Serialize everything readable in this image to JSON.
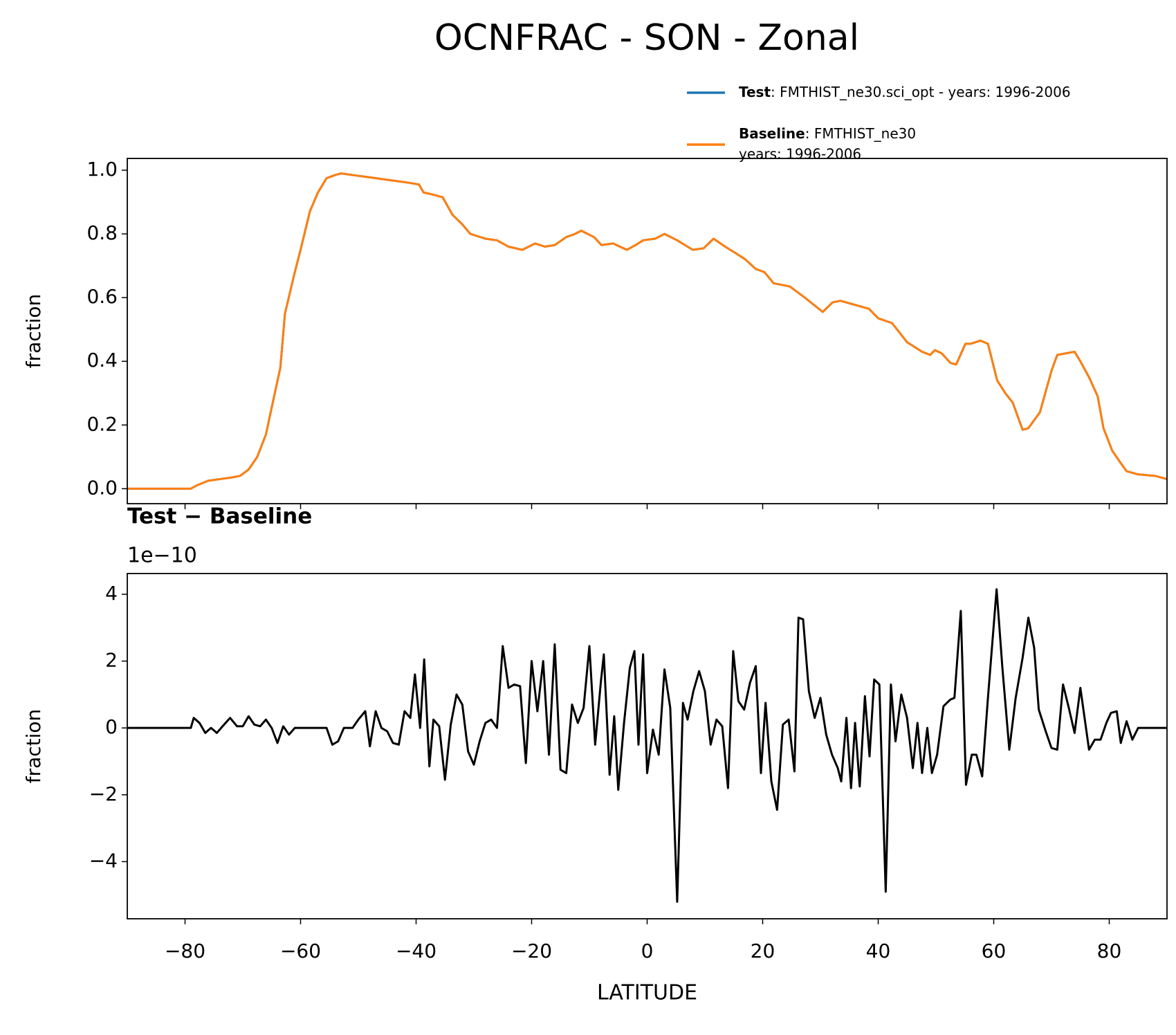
{
  "title": "OCNFRAC - SON - Zonal",
  "chart_data": [
    {
      "type": "line",
      "ylabel": "fraction",
      "xlim": [
        -90,
        90
      ],
      "ylim": [
        -0.047,
        1.037
      ],
      "xticks": [
        -80,
        -60,
        -40,
        -20,
        0,
        20,
        40,
        60,
        80
      ],
      "yticks": [
        {
          "value": 0,
          "label": "0.0"
        },
        {
          "value": 0.2,
          "label": "0.2"
        },
        {
          "value": 0.4,
          "label": "0.4"
        },
        {
          "value": 0.6,
          "label": "0.6"
        },
        {
          "value": 0.8,
          "label": "0.8"
        },
        {
          "value": 1,
          "label": "1.0"
        }
      ],
      "x": [
        -90,
        -79,
        -78,
        -76,
        -74,
        -72,
        -70.5,
        -69,
        -67.5,
        -66,
        -64.7,
        -63.5,
        -62.7,
        -61,
        -60,
        -58.4,
        -57,
        -55.5,
        -54,
        -53,
        -51,
        -49,
        -47,
        -45,
        -43,
        -41,
        -39.5,
        -38.7,
        -37.4,
        -35.4,
        -33.7,
        -32,
        -30.6,
        -28,
        -26,
        -24,
        -21.6,
        -19.4,
        -17.7,
        -16,
        -14,
        -12.5,
        -11.4,
        -9.2,
        -7.9,
        -5.9,
        -3.5,
        -2,
        -0.7,
        1.4,
        3,
        5.2,
        7.9,
        9.8,
        11.5,
        13.5,
        15.3,
        17,
        18.8,
        20.3,
        21.9,
        24.7,
        27.3,
        30.4,
        32.1,
        33.5,
        35.4,
        38.4,
        40,
        42.4,
        45,
        47.6,
        49,
        49.8,
        51,
        52.5,
        53.5,
        55.1,
        56,
        57.7,
        59,
        60.6,
        62,
        63.3,
        64.3,
        65,
        66,
        68,
        70,
        71,
        74,
        75,
        76.5,
        78,
        79,
        80.5,
        82,
        83,
        85,
        88,
        90
      ],
      "series": [
        {
          "name": "Test",
          "description": [
            ": FMTHIST_ne30.sci_opt - years: 1996-2006"
          ],
          "color": "#1f77b4",
          "values": [
            0,
            0,
            0.01,
            0.025,
            0.03,
            0.035,
            0.04,
            0.06,
            0.1,
            0.17,
            0.28,
            0.38,
            0.55,
            0.68,
            0.75,
            0.87,
            0.93,
            0.975,
            0.985,
            0.99,
            0.985,
            0.98,
            0.975,
            0.97,
            0.965,
            0.96,
            0.955,
            0.93,
            0.925,
            0.915,
            0.86,
            0.83,
            0.8,
            0.785,
            0.78,
            0.76,
            0.75,
            0.77,
            0.76,
            0.765,
            0.79,
            0.8,
            0.81,
            0.79,
            0.765,
            0.77,
            0.75,
            0.765,
            0.78,
            0.785,
            0.8,
            0.78,
            0.75,
            0.755,
            0.785,
            0.76,
            0.74,
            0.72,
            0.69,
            0.68,
            0.645,
            0.635,
            0.6,
            0.555,
            0.585,
            0.59,
            0.58,
            0.565,
            0.535,
            0.52,
            0.46,
            0.43,
            0.42,
            0.435,
            0.425,
            0.395,
            0.39,
            0.455,
            0.455,
            0.465,
            0.455,
            0.34,
            0.3,
            0.27,
            0.22,
            0.185,
            0.19,
            0.24,
            0.37,
            0.42,
            0.43,
            0.4,
            0.35,
            0.29,
            0.19,
            0.12,
            0.08,
            0.055,
            0.045,
            0.04,
            0.03
          ]
        },
        {
          "name": "Baseline",
          "description": [
            ": FMTHIST_ne30",
            "years: 1996-2006"
          ],
          "color": "#ff7f0e",
          "values": [
            0,
            0,
            0.01,
            0.025,
            0.03,
            0.035,
            0.04,
            0.06,
            0.1,
            0.17,
            0.28,
            0.38,
            0.55,
            0.68,
            0.75,
            0.87,
            0.93,
            0.975,
            0.985,
            0.99,
            0.985,
            0.98,
            0.975,
            0.97,
            0.965,
            0.96,
            0.955,
            0.93,
            0.925,
            0.915,
            0.86,
            0.83,
            0.8,
            0.785,
            0.78,
            0.76,
            0.75,
            0.77,
            0.76,
            0.765,
            0.79,
            0.8,
            0.81,
            0.79,
            0.765,
            0.77,
            0.75,
            0.765,
            0.78,
            0.785,
            0.8,
            0.78,
            0.75,
            0.755,
            0.785,
            0.76,
            0.74,
            0.72,
            0.69,
            0.68,
            0.645,
            0.635,
            0.6,
            0.555,
            0.585,
            0.59,
            0.58,
            0.565,
            0.535,
            0.52,
            0.46,
            0.43,
            0.42,
            0.435,
            0.425,
            0.395,
            0.39,
            0.455,
            0.455,
            0.465,
            0.455,
            0.34,
            0.3,
            0.27,
            0.22,
            0.185,
            0.19,
            0.24,
            0.37,
            0.42,
            0.43,
            0.4,
            0.35,
            0.29,
            0.19,
            0.12,
            0.08,
            0.055,
            0.045,
            0.04,
            0.03
          ]
        }
      ]
    },
    {
      "type": "line",
      "title": "Test − Baseline",
      "offset_label": "1e−10",
      "ylabel": "fraction",
      "xlabel": "LATITUDE",
      "xlim": [
        -90,
        90
      ],
      "ylim": [
        -5.71,
        4.62
      ],
      "xticks": [
        {
          "value": -80,
          "label": "−80"
        },
        {
          "value": -60,
          "label": "−60"
        },
        {
          "value": -40,
          "label": "−40"
        },
        {
          "value": -20,
          "label": "−20"
        },
        0,
        20,
        40,
        60,
        80
      ],
      "yticks": [
        {
          "value": -4,
          "label": "−4"
        },
        {
          "value": -2,
          "label": "−2"
        },
        0,
        2,
        4
      ],
      "x": [
        -90,
        -79,
        -78.5,
        -77.5,
        -76.5,
        -75.5,
        -74.5,
        -73.5,
        -72.2,
        -71,
        -70,
        -69,
        -68,
        -67,
        -66,
        -65,
        -64,
        -63,
        -62,
        -61,
        -55.5,
        -54.5,
        -53.5,
        -52.5,
        -51,
        -50,
        -48.8,
        -48,
        -47,
        -46,
        -45,
        -44,
        -43,
        -42,
        -41,
        -40.2,
        -39.3,
        -38.6,
        -37.7,
        -37,
        -36,
        -35,
        -34,
        -33,
        -32,
        -31,
        -30,
        -29,
        -28,
        -27,
        -26,
        -25,
        -24,
        -23,
        -22,
        -21,
        -20,
        -19,
        -18,
        -17,
        -16,
        -15,
        -14,
        -13,
        -12,
        -11,
        -10,
        -9,
        -8,
        -7.5,
        -6.5,
        -5.7,
        -5,
        -4,
        -3,
        -2.2,
        -1.5,
        -0.7,
        0,
        1,
        2,
        3,
        4,
        5.2,
        6.2,
        7,
        8,
        9,
        10,
        11,
        12,
        13,
        14,
        14.9,
        15.8,
        16.8,
        17.8,
        18.8,
        19.7,
        20.5,
        21.5,
        22.5,
        23.5,
        24.5,
        25.5,
        26.2,
        27,
        28,
        29,
        30,
        31,
        32,
        33,
        33.6,
        34.5,
        35.3,
        36,
        36.8,
        37.7,
        38.5,
        39.3,
        40.2,
        41.3,
        42.2,
        43,
        44,
        45,
        46,
        46.8,
        47.6,
        48.5,
        49.3,
        50.2,
        51.3,
        52.5,
        53.2,
        54.3,
        55.2,
        56.2,
        57,
        58,
        59,
        60.5,
        61.5,
        62.7,
        63.8,
        65,
        66,
        67,
        67.8,
        69,
        70,
        71,
        72,
        73,
        74,
        75,
        76.5,
        77.5,
        78.5,
        79.5,
        80.3,
        81.3,
        82,
        83,
        84,
        85,
        90
      ],
      "series": [
        {
          "color": "#000000",
          "values": [
            0,
            0,
            0.3,
            0.15,
            -0.15,
            0,
            -0.15,
            0.05,
            0.3,
            0.05,
            0.05,
            0.35,
            0.1,
            0.05,
            0.25,
            0,
            -0.45,
            0.05,
            -0.2,
            0,
            0,
            -0.5,
            -0.4,
            0,
            0,
            0.25,
            0.5,
            -0.55,
            0.5,
            0,
            -0.1,
            -0.45,
            -0.5,
            0.5,
            0.3,
            1.6,
            0,
            2.05,
            -1.15,
            0.25,
            0.05,
            -1.55,
            0.1,
            1.0,
            0.7,
            -0.7,
            -1.1,
            -0.4,
            0.15,
            0.25,
            0,
            2.45,
            1.2,
            1.3,
            1.25,
            -1.05,
            2.0,
            0.5,
            2.0,
            -0.8,
            2.5,
            -1.25,
            -1.35,
            0.7,
            0.15,
            0.6,
            2.45,
            -0.5,
            1.4,
            2.2,
            -1.4,
            0.35,
            -1.85,
            0.15,
            1.8,
            2.3,
            -0.5,
            2.2,
            -1.35,
            -0.05,
            -0.8,
            1.75,
            0.6,
            -5.2,
            0.75,
            0.25,
            1.1,
            1.7,
            1.1,
            -0.5,
            0.25,
            0.05,
            -1.8,
            2.3,
            0.8,
            0.55,
            1.35,
            1.85,
            -1.35,
            0.75,
            -1.6,
            -2.45,
            0.1,
            0.25,
            -1.3,
            3.3,
            3.25,
            1.1,
            0.3,
            0.9,
            -0.2,
            -0.8,
            -1.2,
            -1.6,
            0.3,
            -1.8,
            0.15,
            -1.75,
            0.95,
            -0.85,
            1.45,
            1.3,
            -4.9,
            1.3,
            -0.4,
            1.0,
            0.3,
            -1.2,
            0.15,
            -1.35,
            0,
            -1.35,
            -0.8,
            0.65,
            0.85,
            0.9,
            3.5,
            -1.7,
            -0.8,
            -0.8,
            -1.45,
            0.9,
            4.15,
            1.8,
            -0.65,
            0.9,
            2.1,
            3.3,
            2.4,
            0.55,
            -0.1,
            -0.6,
            -0.65,
            1.3,
            0.6,
            -0.15,
            1.2,
            -0.65,
            -0.35,
            -0.35,
            0.15,
            0.45,
            0.5,
            -0.45,
            0.2,
            -0.35,
            0,
            0
          ]
        }
      ]
    }
  ]
}
